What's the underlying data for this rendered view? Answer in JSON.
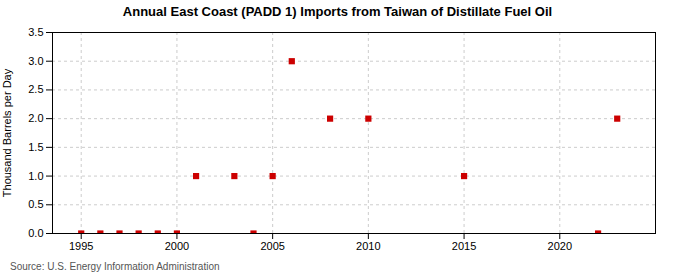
{
  "chart_data": {
    "type": "scatter",
    "title": "Annual East Coast (PADD 1) Imports from Taiwan of Distillate Fuel Oil",
    "ylabel": "Thousand Barrels per Day",
    "source": "Source: U.S. Energy Information Administration",
    "x": [
      1995,
      1996,
      1997,
      1998,
      1999,
      2000,
      2001,
      2003,
      2004,
      2005,
      2006,
      2008,
      2010,
      2015,
      2022,
      2023
    ],
    "values": [
      0.0,
      0.0,
      0.0,
      0.0,
      0.0,
      0.0,
      1.0,
      1.0,
      0.0,
      1.0,
      3.0,
      2.0,
      2.0,
      1.0,
      0.0,
      2.0
    ],
    "color": "#cc0000",
    "marker": "square",
    "xlim": [
      1993.5,
      2025
    ],
    "xticks": [
      1995,
      2000,
      2005,
      2010,
      2015,
      2020
    ],
    "ylim": [
      0,
      3.5
    ],
    "yticks": [
      {
        "value": 0,
        "label": "0.0"
      },
      0.5,
      {
        "value": 1,
        "label": "1.0"
      },
      1.5,
      {
        "value": 2,
        "label": "2.0"
      },
      2.5,
      {
        "value": 3,
        "label": "3.0"
      },
      3.5
    ],
    "grid": true
  }
}
